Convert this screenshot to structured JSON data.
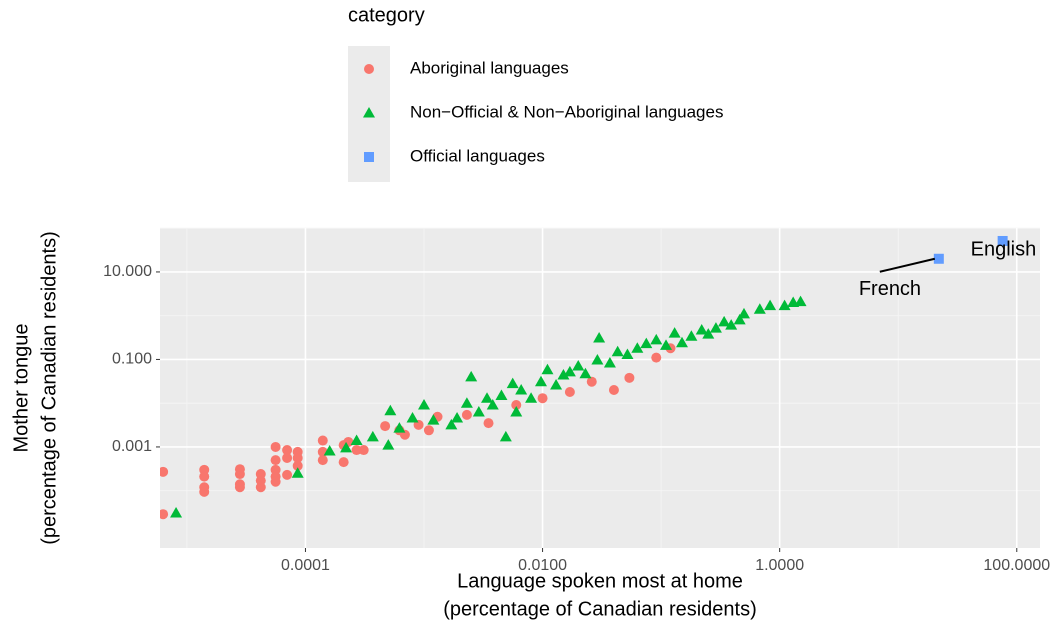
{
  "chart_data": {
    "type": "scatter",
    "legend_title": "category",
    "xlabel": [
      "Language spoken most at home",
      "(percentage of Canadian residents)"
    ],
    "ylabel": [
      "Mother tongue",
      "(percentage of Canadian residents)"
    ],
    "log_x": true,
    "log_y": true,
    "grid": true,
    "xlim": [
      5.93e-06,
      157
    ],
    "ylim": [
      4.9e-06,
      101
    ],
    "xticks": [
      {
        "value": 0.0001,
        "label": "0.0001"
      },
      {
        "value": 0.01,
        "label": "0.0100"
      },
      {
        "value": 1,
        "label": "1.0000"
      },
      {
        "value": 100,
        "label": "100.0000"
      }
    ],
    "yticks": [
      {
        "value": 0.001,
        "label": "0.001"
      },
      {
        "value": 0.1,
        "label": "0.100"
      },
      {
        "value": 10,
        "label": "10.000"
      }
    ],
    "series": [
      {
        "name": "Aboriginal languages",
        "color": "#F8766D",
        "shape": "circle",
        "x": [
          6.3e-06,
          6.3e-06,
          1.4e-05,
          1.4e-05,
          1.4e-05,
          1.4e-05,
          2.8e-05,
          2.8e-05,
          2.8e-05,
          2.8e-05,
          4.2e-05,
          4.2e-05,
          4.2e-05,
          5.6e-05,
          5.6e-05,
          5.6e-05,
          5.6e-05,
          5.6e-05,
          7e-05,
          7e-05,
          7e-05,
          8.6e-05,
          8.6e-05,
          8.6e-05,
          0.00014,
          0.00014,
          0.00014,
          0.00021,
          0.00021,
          0.00023,
          0.00027,
          0.00031,
          0.00047,
          0.00062,
          0.00069,
          0.0009,
          0.0011,
          0.0013,
          0.0023,
          0.0035,
          0.006,
          0.01,
          0.017,
          0.026,
          0.04,
          0.054,
          0.091,
          0.12
        ],
        "values": [
          0.00027,
          2.9e-05,
          0.0003,
          0.00021,
          0.00012,
          9.4e-05,
          0.00031,
          0.00024,
          0.00014,
          0.00012,
          0.00024,
          0.00017,
          0.00012,
          0.001,
          0.0005,
          0.0003,
          0.00021,
          0.00016,
          0.00085,
          0.00056,
          0.00023,
          0.00077,
          0.00056,
          0.00037,
          0.0014,
          0.00077,
          0.0005,
          0.00045,
          0.0011,
          0.0013,
          0.00085,
          0.00085,
          0.003,
          0.0024,
          0.0019,
          0.0032,
          0.0024,
          0.0049,
          0.0054,
          0.0035,
          0.0091,
          0.013,
          0.018,
          0.031,
          0.02,
          0.038,
          0.11,
          0.18
        ]
      },
      {
        "name": "Non−Official & Non−Aboriginal languages",
        "color": "#00BA38",
        "shape": "triangle",
        "x": [
          8.1e-06,
          8.6e-05,
          0.00016,
          0.00022,
          0.00027,
          0.00037,
          0.0005,
          0.00052,
          0.00062,
          0.0008,
          0.001,
          0.0012,
          0.0017,
          0.0019,
          0.0023,
          0.0025,
          0.0029,
          0.0034,
          0.0038,
          0.0045,
          0.0049,
          0.0056,
          0.006,
          0.0066,
          0.008,
          0.0097,
          0.011,
          0.013,
          0.015,
          0.017,
          0.02,
          0.023,
          0.029,
          0.03,
          0.037,
          0.043,
          0.052,
          0.063,
          0.075,
          0.091,
          0.11,
          0.13,
          0.15,
          0.18,
          0.22,
          0.25,
          0.29,
          0.34,
          0.39,
          0.46,
          0.5,
          0.68,
          0.83,
          1.1,
          1.3,
          1.5
        ],
        "values": [
          3.1e-05,
          0.00025,
          0.00081,
          0.00095,
          0.0014,
          0.0017,
          0.0011,
          0.0067,
          0.0027,
          0.0046,
          0.0091,
          0.0041,
          0.0032,
          0.0046,
          0.01,
          0.04,
          0.0063,
          0.013,
          0.0091,
          0.015,
          0.0017,
          0.028,
          0.0063,
          0.02,
          0.013,
          0.031,
          0.058,
          0.026,
          0.044,
          0.052,
          0.071,
          0.047,
          0.097,
          0.31,
          0.083,
          0.15,
          0.13,
          0.18,
          0.23,
          0.28,
          0.21,
          0.4,
          0.24,
          0.34,
          0.47,
          0.38,
          0.52,
          0.72,
          0.61,
          0.8,
          1.1,
          1.4,
          1.7,
          1.7,
          2.0,
          2.1
        ]
      },
      {
        "name": "Official languages",
        "color": "#619CFF",
        "shape": "square",
        "x": [
          76,
          22
        ],
        "values": [
          51,
          20
        ],
        "labels": [
          "English",
          "French"
        ]
      }
    ]
  }
}
